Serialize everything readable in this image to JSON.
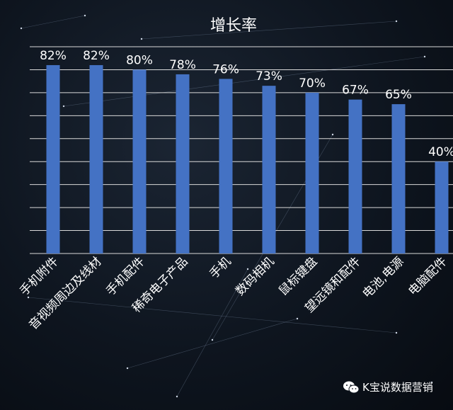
{
  "chart_data": {
    "type": "bar",
    "title": "增长率",
    "categories": [
      "手机附件",
      "音视频周边及线材",
      "手机配件",
      "稀奇电子产品",
      "手机",
      "数码相机",
      "鼠标键盘",
      "望远镜和配件",
      "电池,电源",
      "电脑配件"
    ],
    "values": [
      82,
      82,
      80,
      78,
      76,
      73,
      70,
      67,
      65,
      40
    ],
    "data_labels": [
      "82%",
      "82%",
      "80%",
      "78%",
      "76%",
      "73%",
      "70%",
      "67%",
      "65%",
      "40%"
    ],
    "ylim": [
      0,
      90
    ],
    "grid": true,
    "legend": "none",
    "bar_color": "#4472c4"
  },
  "watermark": {
    "icon": "wechat-icon",
    "text": "K宝说数据营销"
  }
}
